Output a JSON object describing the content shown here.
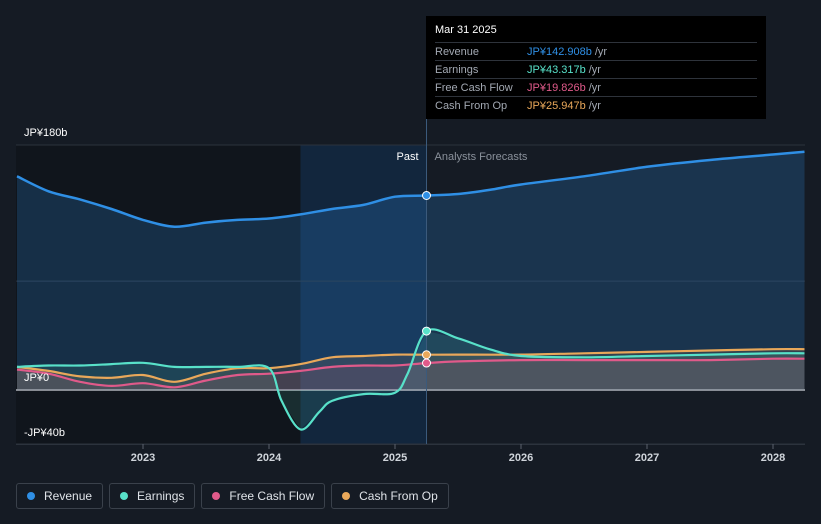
{
  "chart_data": {
    "type": "line",
    "ylim": [
      -40,
      180
    ],
    "y_ticks": [
      {
        "value": 180,
        "label": "JP¥180b"
      },
      {
        "value": 0,
        "label": "JP¥0"
      },
      {
        "value": -40,
        "label": "-JP¥40b"
      }
    ],
    "x_ticks": [
      {
        "value": 2023.0,
        "label": "2023"
      },
      {
        "value": 2024.0,
        "label": "2024"
      },
      {
        "value": 2025.0,
        "label": "2025"
      },
      {
        "value": 2026.0,
        "label": "2026"
      },
      {
        "value": 2027.0,
        "label": "2027"
      },
      {
        "value": 2028.0,
        "label": "2028"
      }
    ],
    "xlim": [
      2021.75,
      2028.25
    ],
    "past_label": "Past",
    "forecast_label": "Analysts Forecasts",
    "divider_x": 2025.25,
    "highlight_start_x": 2024.25,
    "series": [
      {
        "name": "Revenue",
        "color": "#2f8fe5",
        "fill": true,
        "points": [
          [
            2022.0,
            157
          ],
          [
            2022.25,
            146
          ],
          [
            2022.5,
            140
          ],
          [
            2022.75,
            133
          ],
          [
            2023.0,
            125
          ],
          [
            2023.25,
            120
          ],
          [
            2023.5,
            123
          ],
          [
            2023.75,
            125
          ],
          [
            2024.0,
            126
          ],
          [
            2024.25,
            129
          ],
          [
            2024.5,
            133
          ],
          [
            2024.75,
            136
          ],
          [
            2025.0,
            142
          ],
          [
            2025.25,
            142.9
          ],
          [
            2025.5,
            144
          ],
          [
            2025.75,
            147
          ],
          [
            2026.0,
            151
          ],
          [
            2026.5,
            157
          ],
          [
            2027.0,
            164
          ],
          [
            2027.5,
            169
          ],
          [
            2028.0,
            173
          ],
          [
            2028.25,
            175
          ]
        ]
      },
      {
        "name": "Earnings",
        "color": "#58e1c9",
        "fill": true,
        "points": [
          [
            2022.0,
            17
          ],
          [
            2022.25,
            18
          ],
          [
            2022.5,
            18
          ],
          [
            2022.75,
            19
          ],
          [
            2023.0,
            20
          ],
          [
            2023.25,
            17
          ],
          [
            2023.5,
            17
          ],
          [
            2023.75,
            17
          ],
          [
            2024.0,
            16
          ],
          [
            2024.1,
            -8
          ],
          [
            2024.25,
            -29
          ],
          [
            2024.4,
            -16
          ],
          [
            2024.5,
            -8
          ],
          [
            2024.75,
            -3
          ],
          [
            2025.0,
            -2
          ],
          [
            2025.1,
            12
          ],
          [
            2025.25,
            43.3
          ],
          [
            2025.5,
            38
          ],
          [
            2025.75,
            30
          ],
          [
            2026.0,
            25
          ],
          [
            2026.5,
            24
          ],
          [
            2027.0,
            25
          ],
          [
            2027.5,
            26
          ],
          [
            2028.0,
            27
          ],
          [
            2028.25,
            27
          ]
        ]
      },
      {
        "name": "Free Cash Flow",
        "color": "#e05a8a",
        "fill": true,
        "points": [
          [
            2022.0,
            15
          ],
          [
            2022.25,
            12
          ],
          [
            2022.5,
            6
          ],
          [
            2022.75,
            3
          ],
          [
            2023.0,
            5
          ],
          [
            2023.25,
            2
          ],
          [
            2023.5,
            7
          ],
          [
            2023.75,
            11
          ],
          [
            2024.0,
            12
          ],
          [
            2024.25,
            14
          ],
          [
            2024.5,
            17
          ],
          [
            2024.75,
            18
          ],
          [
            2025.0,
            18
          ],
          [
            2025.25,
            19.8
          ],
          [
            2025.5,
            21
          ],
          [
            2026.0,
            22
          ],
          [
            2026.5,
            22
          ],
          [
            2027.0,
            22
          ],
          [
            2027.5,
            22
          ],
          [
            2028.0,
            23
          ],
          [
            2028.25,
            23
          ]
        ]
      },
      {
        "name": "Cash From Op",
        "color": "#e9a85a",
        "fill": true,
        "points": [
          [
            2022.0,
            17
          ],
          [
            2022.25,
            14
          ],
          [
            2022.5,
            10
          ],
          [
            2022.75,
            9
          ],
          [
            2023.0,
            11
          ],
          [
            2023.25,
            6
          ],
          [
            2023.5,
            12
          ],
          [
            2023.75,
            16
          ],
          [
            2024.0,
            16
          ],
          [
            2024.25,
            19
          ],
          [
            2024.5,
            24
          ],
          [
            2024.75,
            25
          ],
          [
            2025.0,
            26
          ],
          [
            2025.25,
            25.9
          ],
          [
            2025.5,
            26
          ],
          [
            2026.0,
            26
          ],
          [
            2026.5,
            27
          ],
          [
            2027.0,
            28
          ],
          [
            2027.5,
            29
          ],
          [
            2028.0,
            30
          ],
          [
            2028.25,
            30
          ]
        ]
      }
    ]
  },
  "tooltip": {
    "date": "Mar 31 2025",
    "rows": [
      {
        "label": "Revenue",
        "value": "JP¥142.908b",
        "unit": "/yr",
        "color": "#2f8fe5"
      },
      {
        "label": "Earnings",
        "value": "JP¥43.317b",
        "unit": "/yr",
        "color": "#58e1c9"
      },
      {
        "label": "Free Cash Flow",
        "value": "JP¥19.826b",
        "unit": "/yr",
        "color": "#e05a8a"
      },
      {
        "label": "Cash From Op",
        "value": "JP¥25.947b",
        "unit": "/yr",
        "color": "#e9a85a"
      }
    ]
  },
  "legend": [
    {
      "label": "Revenue",
      "color": "#2f8fe5"
    },
    {
      "label": "Earnings",
      "color": "#58e1c9"
    },
    {
      "label": "Free Cash Flow",
      "color": "#e05a8a"
    },
    {
      "label": "Cash From Op",
      "color": "#e9a85a"
    }
  ]
}
